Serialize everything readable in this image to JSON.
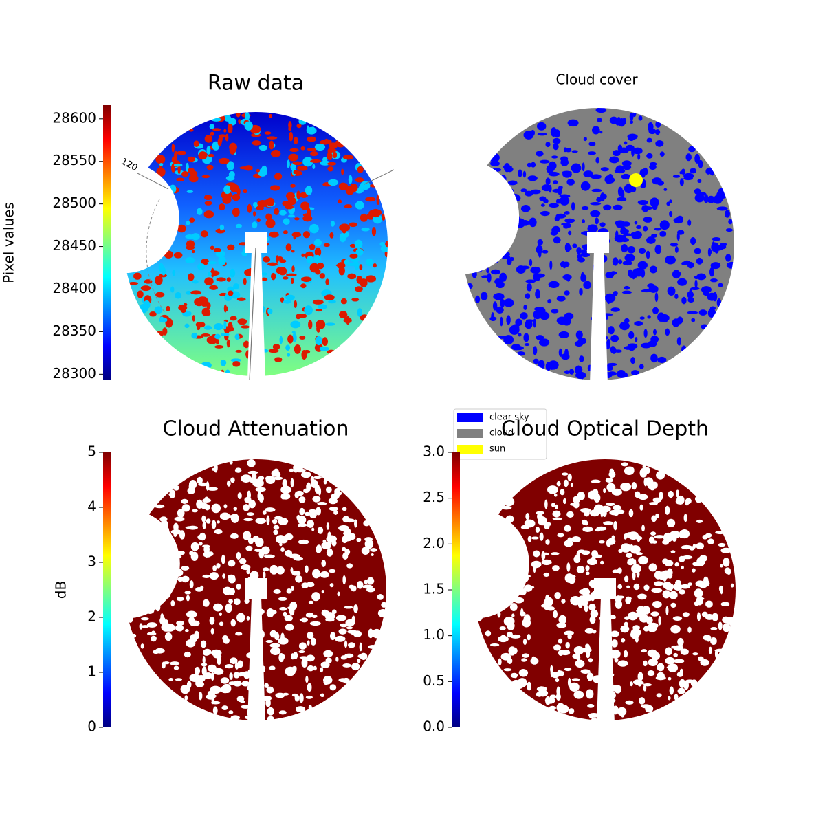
{
  "chart_data": [
    {
      "type": "image",
      "title": "Raw data",
      "colormap": "jet",
      "ylabel": "Pixel values",
      "ylim": [
        28293,
        28616
      ],
      "yticks": [
        28300,
        28350,
        28400,
        28450,
        28500,
        28550,
        28600
      ],
      "annotations": [
        "120"
      ]
    },
    {
      "type": "image",
      "title": "Cloud cover",
      "legend": "lower left",
      "series": [
        {
          "name": "clear sky",
          "color": "#0000ff"
        },
        {
          "name": "cloud",
          "color": "#808080"
        },
        {
          "name": "sun",
          "color": "#ffff00"
        }
      ]
    },
    {
      "type": "image",
      "title": "Cloud Attenuation",
      "colormap": "jet",
      "ylabel": "dB",
      "ylim": [
        0,
        5
      ],
      "yticks": [
        0,
        1,
        2,
        3,
        4,
        5
      ]
    },
    {
      "type": "image",
      "title": "Cloud Optical Depth",
      "colormap": "jet",
      "ylim": [
        0,
        3
      ],
      "yticks": [
        {
          "value": 0,
          "label": "0.0"
        },
        {
          "value": 0.5,
          "label": "0.5"
        },
        {
          "value": 1,
          "label": "1.0"
        },
        {
          "value": 1.5,
          "label": "1.5"
        },
        {
          "value": 2,
          "label": "2.0"
        },
        {
          "value": 2.5,
          "label": "2.5"
        },
        {
          "value": 3,
          "label": "3.0"
        }
      ]
    }
  ]
}
